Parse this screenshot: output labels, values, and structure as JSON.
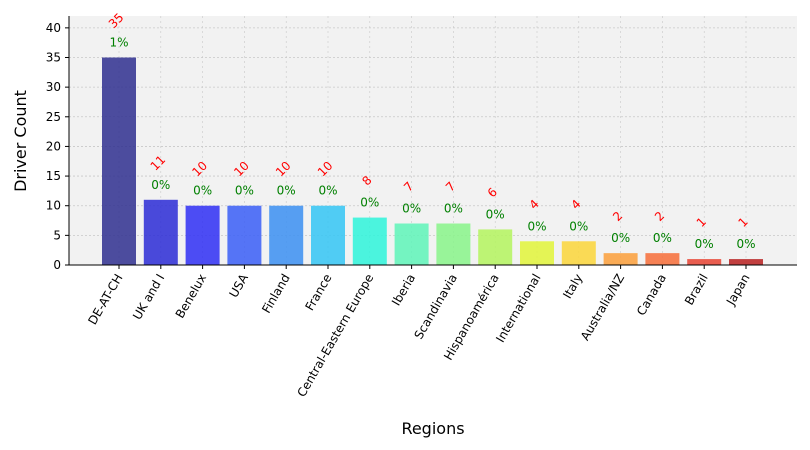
{
  "chart_data": {
    "type": "bar",
    "title": "",
    "xlabel": "Regions",
    "ylabel": "Driver Count",
    "ylim": [
      0,
      42
    ],
    "yticks": [
      0,
      5,
      10,
      15,
      20,
      25,
      30,
      35,
      40
    ],
    "grid": true,
    "legend": "none",
    "categories": [
      "DE-AT-CH",
      "UK and I",
      "Benelux",
      "USA",
      "Finland",
      "France",
      "Central-Eastern Europe",
      "Iberia",
      "Scandinavia",
      "Hispanoamérica",
      "International",
      "Italy",
      "Australia/NZ",
      "Canada",
      "Brazil",
      "Japan"
    ],
    "values": [
      35,
      11,
      10,
      10,
      10,
      10,
      8,
      7,
      7,
      6,
      4,
      4,
      2,
      2,
      1,
      1
    ],
    "percent_labels": [
      "1%",
      "0%",
      "0%",
      "0%",
      "0%",
      "0%",
      "0%",
      "0%",
      "0%",
      "0%",
      "0%",
      "0%",
      "0%",
      "0%",
      "0%",
      "0%"
    ],
    "bar_colors": [
      "#2f2f8f",
      "#2b2bd6",
      "#2f2ff5",
      "#3a5ef7",
      "#3b8ff2",
      "#34c6f4",
      "#2ef5da",
      "#5ef5b8",
      "#88f58a",
      "#b4f45e",
      "#e2f53a",
      "#fbd63a",
      "#fb9f3a",
      "#f76d38",
      "#e84333",
      "#b82020"
    ],
    "colors": {
      "count_label": "#ff0000",
      "percent_label": "#008000",
      "plot_background": "#f2f2f2",
      "grid": "#c8c8c8"
    }
  }
}
